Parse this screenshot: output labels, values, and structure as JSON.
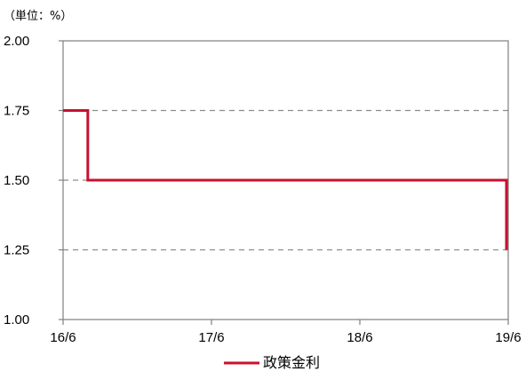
{
  "chart_data": {
    "type": "line",
    "unit_label": "（単位：%）",
    "x_tick_labels": [
      "16/6",
      "17/6",
      "18/6",
      "19/6"
    ],
    "y_tick_labels": [
      "2.00",
      "1.75",
      "1.50",
      "1.25",
      "1.00"
    ],
    "ylim": [
      1.0,
      2.0
    ],
    "y_ticks": [
      2.0,
      1.75,
      1.5,
      1.25,
      1.0
    ],
    "grid": "horizontal-dashed",
    "legend_position": "bottom-center",
    "series": [
      {
        "name": "政策金利",
        "color": "#c8102e",
        "step": true,
        "x": [
          "2016-06",
          "2016-07",
          "2016-08",
          "2019-06"
        ],
        "values": [
          1.75,
          1.75,
          1.5,
          1.25
        ]
      }
    ]
  }
}
